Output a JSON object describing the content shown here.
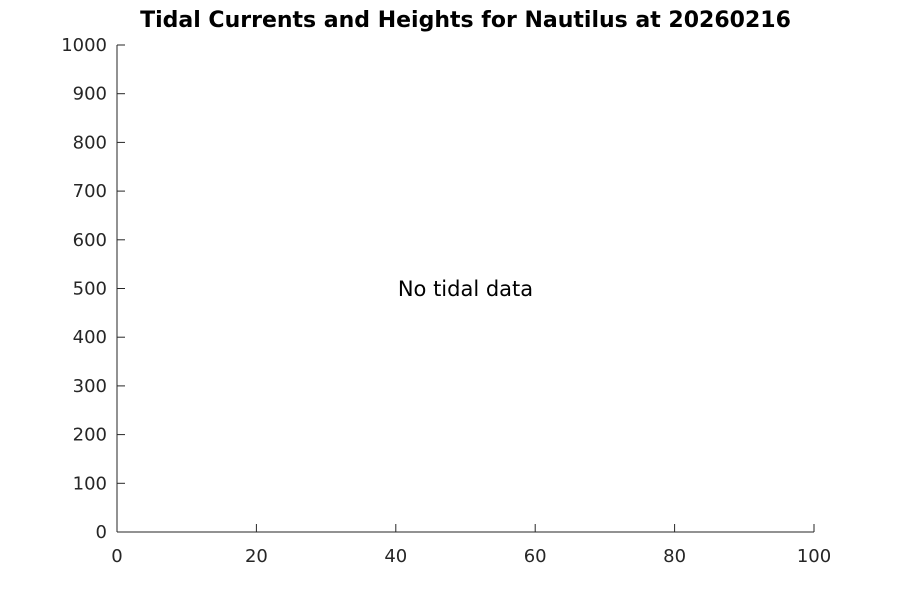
{
  "chart_data": {
    "type": "line",
    "title": "Tidal Currents and Heights for Nautilus at 20260216",
    "annotation": "No tidal data",
    "series": [],
    "categories": [],
    "xlabel": "",
    "ylabel": "",
    "xlim": [
      0,
      100
    ],
    "ylim": [
      0,
      1000
    ],
    "x_ticks": [
      0,
      20,
      40,
      60,
      80,
      100
    ],
    "y_ticks": [
      0,
      100,
      200,
      300,
      400,
      500,
      600,
      700,
      800,
      900,
      1000
    ],
    "grid": false,
    "legend": false,
    "tick_direction": "in",
    "spines": [
      "left",
      "bottom"
    ],
    "axis_color": "#262626",
    "title_color": "#000000",
    "annotation_color": "#000000",
    "background_color": "#ffffff"
  }
}
